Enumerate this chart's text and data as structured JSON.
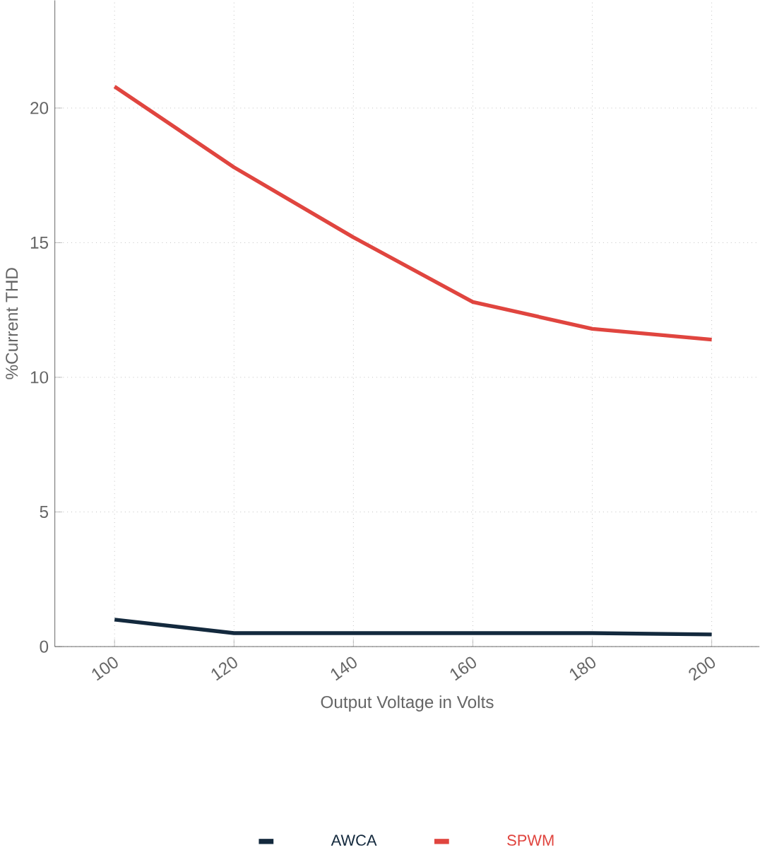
{
  "chart_data": {
    "type": "line",
    "xlabel": "Output Voltage in Volts",
    "ylabel": "%Current THD",
    "x": [
      100,
      120,
      140,
      160,
      180,
      200
    ],
    "series": [
      {
        "name": "AWCA",
        "color": "#13293d",
        "values": [
          1.0,
          0.5,
          0.5,
          0.5,
          0.5,
          0.45
        ]
      },
      {
        "name": "SPWM",
        "color": "#e0453f",
        "values": [
          20.8,
          17.8,
          15.2,
          12.8,
          11.8,
          11.4
        ]
      }
    ],
    "xlim": [
      90,
      208
    ],
    "ylim": [
      0,
      24
    ],
    "xticks": [
      100,
      120,
      140,
      160,
      180,
      200
    ],
    "yticks": [
      0,
      5,
      10,
      15,
      20
    ],
    "grid": true,
    "legend": "bottom",
    "marker": "none",
    "line_style": "solid"
  }
}
